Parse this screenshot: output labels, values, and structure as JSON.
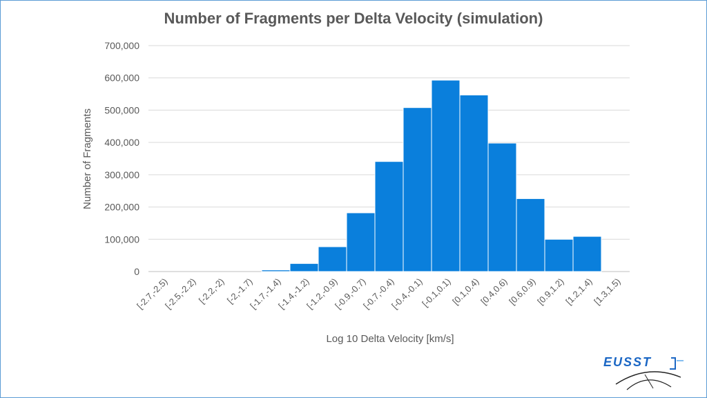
{
  "chart_data": {
    "type": "bar",
    "title": "Number of Fragments per Delta Velocity (simulation)",
    "xlabel": "Log 10 Delta Velocity [km/s]",
    "ylabel": "Number of Fragments",
    "categories": [
      "[-2.7,-2.5)",
      "[-2.5,-2.2)",
      "[-2.2,-2)",
      "[-2,-1.7)",
      "[-1.7,-1.4)",
      "[-1.4,-1.2)",
      "[-1.2,-0.9)",
      "[-0.9,-0.7)",
      "[-0.7,-0.4)",
      "[-0.4,-0.1)",
      "[-0.1,0.1)",
      "[0.1,0.4)",
      "[0.4,0.6)",
      "[0.6,0.9)",
      "[0.9,1.2)",
      "[1.2,1.4)",
      "[1.3,1.5)"
    ],
    "values": [
      0,
      0,
      0,
      0,
      5000,
      25000,
      77000,
      182000,
      341000,
      508000,
      593000,
      547000,
      398000,
      226000,
      100000,
      109000,
      0
    ],
    "ylim": [
      0,
      700000
    ],
    "yticks": [
      0,
      100000,
      200000,
      300000,
      400000,
      500000,
      600000,
      700000
    ],
    "ytick_labels": [
      "0",
      "100,000",
      "200,000",
      "300,000",
      "400,000",
      "500,000",
      "600,000",
      "700,000"
    ],
    "grid": true,
    "bar_color": "#0a7fdc"
  },
  "logo": {
    "text": "EUSST"
  }
}
